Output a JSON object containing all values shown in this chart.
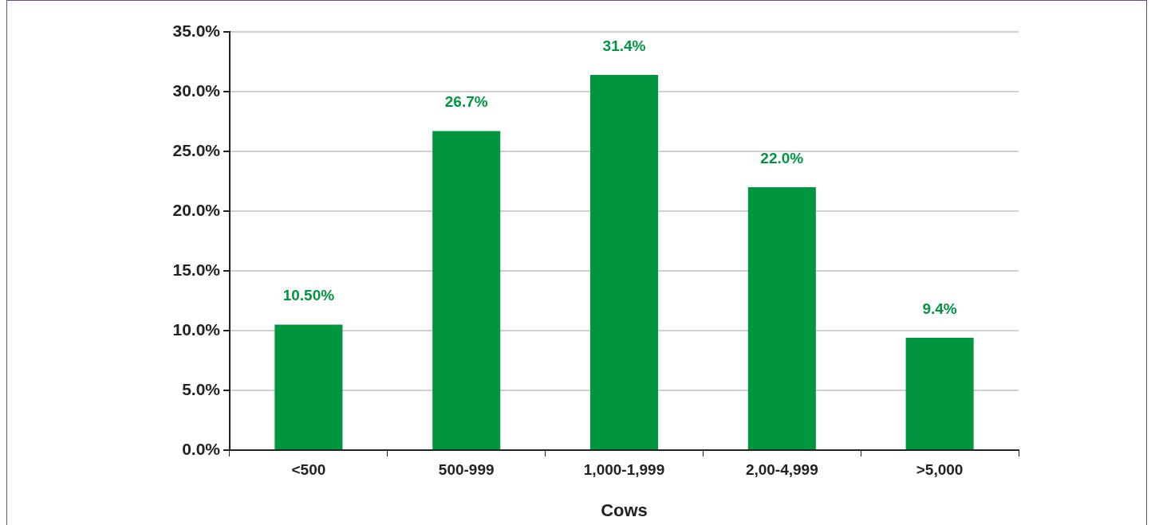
{
  "chart_data": {
    "type": "bar",
    "xlabel": "Cows",
    "categories": [
      "<500",
      "500-999",
      "1,000-1,999",
      "2,00-4,999",
      ">5,000"
    ],
    "values": [
      10.5,
      26.7,
      31.4,
      22.0,
      9.4
    ],
    "value_labels": [
      "10.50%",
      "26.7%",
      "31.4%",
      "22.0%",
      "9.4%"
    ],
    "color": "#00963f",
    "ylim": [
      0,
      35
    ],
    "yticks": [
      {
        "value": 0,
        "label": "0.0%"
      },
      {
        "value": 5,
        "label": "5.0%"
      },
      {
        "value": 10,
        "label": "10.0%"
      },
      {
        "value": 15,
        "label": "15.0%"
      },
      {
        "value": 20,
        "label": "20.0%"
      },
      {
        "value": 25,
        "label": "25.0%"
      },
      {
        "value": 30,
        "label": "30.0%"
      },
      {
        "value": 35,
        "label": "35.0%"
      }
    ],
    "grid": "y",
    "legend": false
  }
}
